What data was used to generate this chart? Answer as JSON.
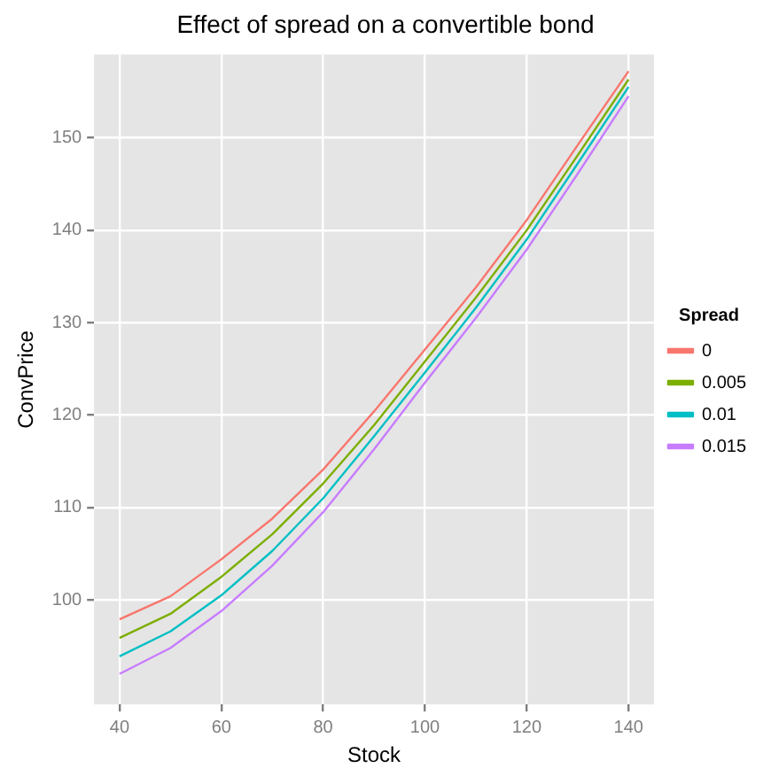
{
  "chart_data": {
    "type": "line",
    "title": "Effect of spread on a convertible bond",
    "xlabel": "Stock",
    "ylabel": "ConvPrice",
    "legend_title": "Spread",
    "x": [
      40,
      50,
      60,
      70,
      80,
      90,
      100,
      110,
      120,
      130,
      140
    ],
    "series": [
      {
        "name": "0",
        "color": "#f8766d",
        "values": [
          97.9,
          100.4,
          104.4,
          108.8,
          114.1,
          120.4,
          127.1,
          133.8,
          141.1,
          149.2,
          157.2
        ]
      },
      {
        "name": "0.005",
        "color": "#7cae00",
        "values": [
          95.9,
          98.5,
          102.5,
          107.1,
          112.6,
          118.9,
          125.8,
          132.7,
          140.0,
          148.1,
          156.3
        ]
      },
      {
        "name": "0.01",
        "color": "#00bfc4",
        "values": [
          93.9,
          96.6,
          100.5,
          105.3,
          111.0,
          117.7,
          124.6,
          131.6,
          139.0,
          147.2,
          155.5
        ]
      },
      {
        "name": "0.015",
        "color": "#c77cff",
        "values": [
          92.0,
          94.8,
          98.8,
          103.7,
          109.5,
          116.3,
          123.5,
          130.5,
          137.9,
          146.1,
          154.5
        ]
      }
    ],
    "xlim": [
      35,
      145
    ],
    "xticks": [
      40,
      60,
      80,
      100,
      120,
      140
    ],
    "ylim": [
      88.7,
      159
    ],
    "yticks": [
      100,
      110,
      120,
      130,
      140,
      150
    ],
    "grid": true,
    "legend": "right",
    "marker": "none",
    "line_style": "solid"
  }
}
